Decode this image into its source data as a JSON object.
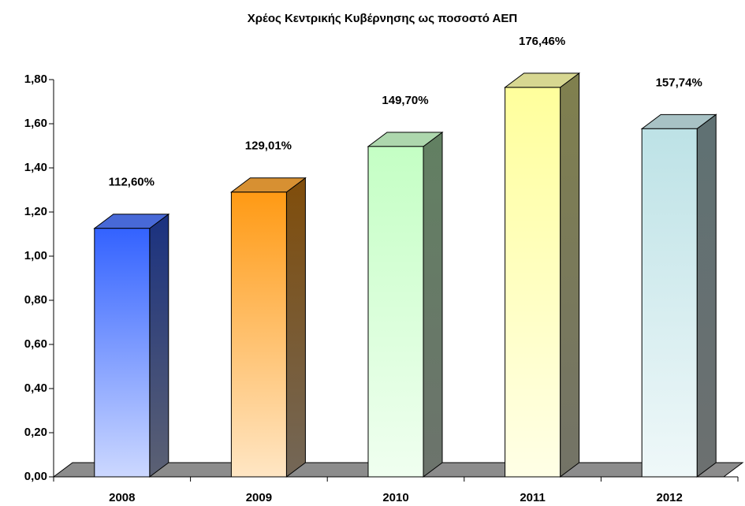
{
  "chart_data": {
    "type": "bar3d",
    "title": "Χρέος Κεντρικής Κυβέρνησης ως ποσοστό  ΑΕΠ",
    "categories": [
      "2008",
      "2009",
      "2010",
      "2011",
      "2012"
    ],
    "values": [
      1.126,
      1.2901,
      1.497,
      1.7646,
      1.5774
    ],
    "value_labels": [
      "112,60%",
      "129,01%",
      "149,70%",
      "176,46%",
      "157,74%"
    ],
    "colors": [
      "#3362ff",
      "#ff9a14",
      "#c4ffc4",
      "#ffff9c",
      "#bde2e6"
    ],
    "ylim": [
      0,
      1.8
    ],
    "yticks": [
      {
        "value": 0,
        "label": "0,00"
      },
      {
        "value": 0.2,
        "label": "0,20"
      },
      {
        "value": 0.4,
        "label": "0,40"
      },
      {
        "value": 0.6,
        "label": "0,60"
      },
      {
        "value": 0.8,
        "label": "0,80"
      },
      {
        "value": 1.0,
        "label": "1,00"
      },
      {
        "value": 1.2,
        "label": "1,20"
      },
      {
        "value": 1.4,
        "label": "1,40"
      },
      {
        "value": 1.6,
        "label": "1,60"
      },
      {
        "value": 1.8,
        "label": "1,80"
      }
    ]
  }
}
